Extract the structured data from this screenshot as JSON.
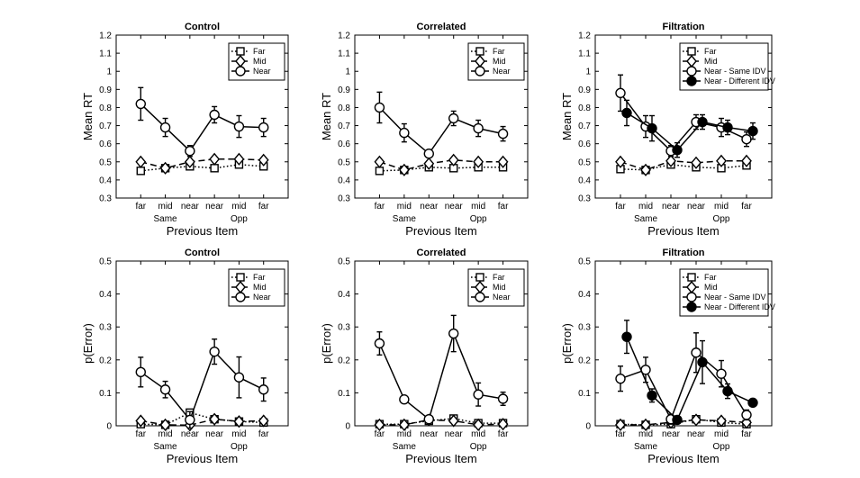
{
  "figure": {
    "x_group_labels": [
      "Same",
      "Opp"
    ]
  },
  "chart_data": [
    {
      "type": "line",
      "title": "Control",
      "xlabel": "Previous Item",
      "ylabel": "Mean RT",
      "categories": [
        "far",
        "mid",
        "near",
        "near",
        "mid",
        "far"
      ],
      "ylim": [
        0.3,
        1.2
      ],
      "yticks": [
        0.3,
        0.4,
        0.5,
        0.6,
        0.7,
        0.8,
        0.9,
        1,
        1.1,
        1.2
      ],
      "legend_position": "top-right",
      "series": [
        {
          "name": "Far",
          "marker": "square",
          "line": "dotted",
          "values": [
            0.45,
            0.465,
            0.475,
            0.465,
            0.485,
            0.475
          ],
          "errors": [
            0.015,
            0.015,
            0.015,
            0.012,
            0.015,
            0.015
          ]
        },
        {
          "name": "Mid",
          "marker": "diamond",
          "line": "dashed",
          "values": [
            0.5,
            0.465,
            0.5,
            0.515,
            0.515,
            0.51
          ],
          "errors": [
            0.012,
            0.012,
            0.012,
            0.012,
            0.012,
            0.012
          ]
        },
        {
          "name": "Near",
          "marker": "circle-open",
          "line": "solid",
          "values": [
            0.82,
            0.69,
            0.56,
            0.76,
            0.695,
            0.69
          ],
          "errors": [
            0.09,
            0.05,
            0.03,
            0.045,
            0.06,
            0.05
          ]
        }
      ]
    },
    {
      "type": "line",
      "title": "Correlated",
      "xlabel": "Previous Item",
      "ylabel": "Mean RT",
      "categories": [
        "far",
        "mid",
        "near",
        "near",
        "mid",
        "far"
      ],
      "ylim": [
        0.3,
        1.2
      ],
      "yticks": [
        0.3,
        0.4,
        0.5,
        0.6,
        0.7,
        0.8,
        0.9,
        1,
        1.1,
        1.2
      ],
      "legend_position": "top-right",
      "series": [
        {
          "name": "Far",
          "marker": "square",
          "line": "dotted",
          "values": [
            0.45,
            0.455,
            0.47,
            0.465,
            0.47,
            0.47
          ],
          "errors": [
            0.015,
            0.012,
            0.012,
            0.012,
            0.012,
            0.012
          ]
        },
        {
          "name": "Mid",
          "marker": "diamond",
          "line": "dashed",
          "values": [
            0.5,
            0.455,
            0.49,
            0.51,
            0.5,
            0.5
          ],
          "errors": [
            0.012,
            0.012,
            0.012,
            0.012,
            0.012,
            0.012
          ]
        },
        {
          "name": "Near",
          "marker": "circle-open",
          "line": "solid",
          "values": [
            0.8,
            0.66,
            0.545,
            0.74,
            0.685,
            0.655
          ],
          "errors": [
            0.085,
            0.05,
            0.02,
            0.04,
            0.045,
            0.04
          ]
        }
      ]
    },
    {
      "type": "line",
      "title": "Filtration",
      "xlabel": "Previous Item",
      "ylabel": "Mean RT",
      "categories": [
        "far",
        "mid",
        "near",
        "near",
        "mid",
        "far"
      ],
      "ylim": [
        0.3,
        1.2
      ],
      "yticks": [
        0.3,
        0.4,
        0.5,
        0.6,
        0.7,
        0.8,
        0.9,
        1,
        1.1,
        1.2
      ],
      "legend_position": "top-right",
      "series": [
        {
          "name": "Far",
          "marker": "square",
          "line": "dotted",
          "values": [
            0.46,
            0.455,
            0.485,
            0.47,
            0.465,
            0.48
          ],
          "errors": [
            0.015,
            0.012,
            0.012,
            0.012,
            0.012,
            0.012
          ]
        },
        {
          "name": "Mid",
          "marker": "diamond",
          "line": "dashed",
          "values": [
            0.5,
            0.455,
            0.505,
            0.495,
            0.505,
            0.505
          ],
          "errors": [
            0.012,
            0.012,
            0.012,
            0.012,
            0.012,
            0.012
          ]
        },
        {
          "name": "Near - Same IDV",
          "marker": "circle-open",
          "line": "solid",
          "values": [
            0.88,
            0.695,
            0.56,
            0.72,
            0.69,
            0.625
          ],
          "errors": [
            0.1,
            0.06,
            0.03,
            0.04,
            0.05,
            0.04
          ]
        },
        {
          "name": "Near - Different IDV",
          "marker": "circle-filled",
          "line": "solid",
          "values": [
            0.77,
            0.685,
            0.565,
            0.72,
            0.69,
            0.67
          ],
          "errors": [
            0.07,
            0.07,
            0.04,
            0.04,
            0.04,
            0.045
          ]
        }
      ]
    },
    {
      "type": "line",
      "title": "Control",
      "xlabel": "Previous Item",
      "ylabel": "p(Error)",
      "categories": [
        "far",
        "mid",
        "near",
        "near",
        "mid",
        "far"
      ],
      "ylim": [
        0,
        0.5
      ],
      "yticks": [
        0,
        0.1,
        0.2,
        0.3,
        0.4,
        0.5
      ],
      "legend_position": "top-right",
      "series": [
        {
          "name": "Far",
          "marker": "square",
          "line": "dotted",
          "values": [
            0.005,
            0.003,
            0.04,
            0.02,
            0.013,
            0.01
          ],
          "errors": [
            0.005,
            0.003,
            0.005,
            0.005,
            0.005,
            0.005
          ]
        },
        {
          "name": "Mid",
          "marker": "diamond",
          "line": "dashed",
          "values": [
            0.015,
            0.003,
            0.002,
            0.02,
            0.013,
            0.015
          ],
          "errors": [
            0.005,
            0.003,
            0.003,
            0.005,
            0.005,
            0.005
          ]
        },
        {
          "name": "Near",
          "marker": "circle-open",
          "line": "solid",
          "values": [
            0.163,
            0.11,
            0.018,
            0.225,
            0.147,
            0.11
          ],
          "errors": [
            0.045,
            0.025,
            0.025,
            0.038,
            0.062,
            0.035
          ]
        }
      ]
    },
    {
      "type": "line",
      "title": "Correlated",
      "xlabel": "Previous Item",
      "ylabel": "p(Error)",
      "categories": [
        "far",
        "mid",
        "near",
        "near",
        "mid",
        "far"
      ],
      "ylim": [
        0,
        0.5
      ],
      "yticks": [
        0,
        0.1,
        0.2,
        0.3,
        0.4,
        0.5
      ],
      "legend_position": "top-right",
      "series": [
        {
          "name": "Far",
          "marker": "square",
          "line": "dotted",
          "values": [
            0.005,
            0.005,
            0.015,
            0.022,
            0.008,
            0.008
          ],
          "errors": [
            0.003,
            0.003,
            0.004,
            0.005,
            0.004,
            0.004
          ]
        },
        {
          "name": "Mid",
          "marker": "diamond",
          "line": "dashed",
          "values": [
            0.003,
            0.003,
            0.018,
            0.015,
            0.003,
            0.005
          ],
          "errors": [
            0.003,
            0.003,
            0.004,
            0.004,
            0.003,
            0.003
          ]
        },
        {
          "name": "Near",
          "marker": "circle-open",
          "line": "solid",
          "values": [
            0.25,
            0.08,
            0.02,
            0.28,
            0.095,
            0.082
          ],
          "errors": [
            0.035,
            0.01,
            0.01,
            0.055,
            0.035,
            0.02
          ]
        }
      ]
    },
    {
      "type": "line",
      "title": "Filtration",
      "xlabel": "Previous Item",
      "ylabel": "p(Error)",
      "categories": [
        "far",
        "mid",
        "near",
        "near",
        "mid",
        "far"
      ],
      "ylim": [
        0,
        0.5
      ],
      "yticks": [
        0,
        0.1,
        0.2,
        0.3,
        0.4,
        0.5
      ],
      "legend_position": "top-right",
      "series": [
        {
          "name": "Far",
          "marker": "square",
          "line": "dotted",
          "values": [
            0.005,
            0.003,
            0.005,
            0.02,
            0.01,
            0.005
          ],
          "errors": [
            0.003,
            0.003,
            0.003,
            0.005,
            0.004,
            0.003
          ]
        },
        {
          "name": "Mid",
          "marker": "diamond",
          "line": "dashed",
          "values": [
            0.003,
            0.003,
            0.01,
            0.018,
            0.015,
            0.01
          ],
          "errors": [
            0.003,
            0.003,
            0.004,
            0.004,
            0.004,
            0.004
          ]
        },
        {
          "name": "Near - Same IDV",
          "marker": "circle-open",
          "line": "solid",
          "values": [
            0.143,
            0.17,
            0.02,
            0.222,
            0.158,
            0.033
          ],
          "errors": [
            0.038,
            0.038,
            0.015,
            0.06,
            0.04,
            0.015
          ]
        },
        {
          "name": "Near - Different IDV",
          "marker": "circle-filled",
          "line": "solid",
          "values": [
            0.27,
            0.092,
            0.018,
            0.193,
            0.105,
            0.07
          ],
          "errors": [
            0.05,
            0.02,
            0.008,
            0.065,
            0.022,
            0.01
          ]
        }
      ]
    }
  ]
}
